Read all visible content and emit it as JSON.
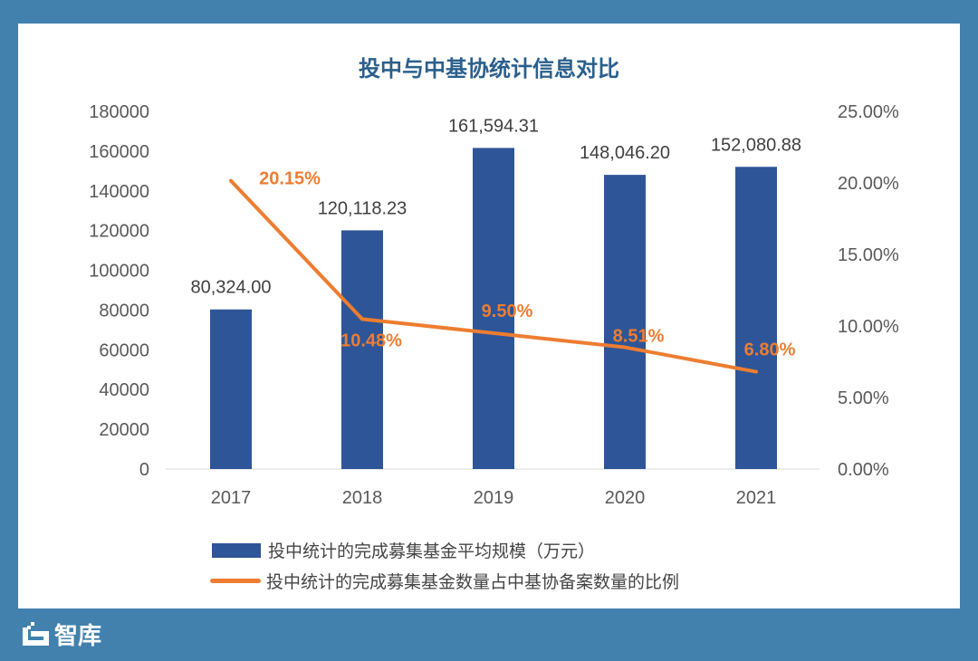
{
  "chart_data": {
    "type": "bar+line",
    "title": "投中与中基协统计信息对比",
    "categories": [
      "2017",
      "2018",
      "2019",
      "2020",
      "2021"
    ],
    "series": [
      {
        "name": "投中统计的完成募集基金平均规模（万元）",
        "type": "bar",
        "axis": "left",
        "values": [
          80324.0,
          120118.23,
          161594.31,
          148046.2,
          152080.88
        ],
        "labels": [
          "80,324.00",
          "120,118.23",
          "161,594.31",
          "148,046.20",
          "152,080.88"
        ],
        "color": "#2e5597"
      },
      {
        "name": "投中统计的完成募集基金数量占中基协备案数量的比例",
        "type": "line",
        "axis": "right",
        "values": [
          20.15,
          10.48,
          9.5,
          8.51,
          6.8
        ],
        "labels": [
          "20.15%",
          "10.48%",
          "9.50%",
          "8.51%",
          "6.80%"
        ],
        "color": "#ed7d31"
      }
    ],
    "y_left": {
      "range": [
        0,
        180000
      ],
      "ticks": [
        "0",
        "20000",
        "40000",
        "60000",
        "80000",
        "100000",
        "120000",
        "140000",
        "160000",
        "180000"
      ]
    },
    "y_right": {
      "range": [
        0,
        25
      ],
      "ticks": [
        "0.00%",
        "5.00%",
        "10.00%",
        "15.00%",
        "20.00%",
        "25.00%"
      ]
    },
    "grid": false,
    "legend": "bottom"
  },
  "watermark": "智库"
}
